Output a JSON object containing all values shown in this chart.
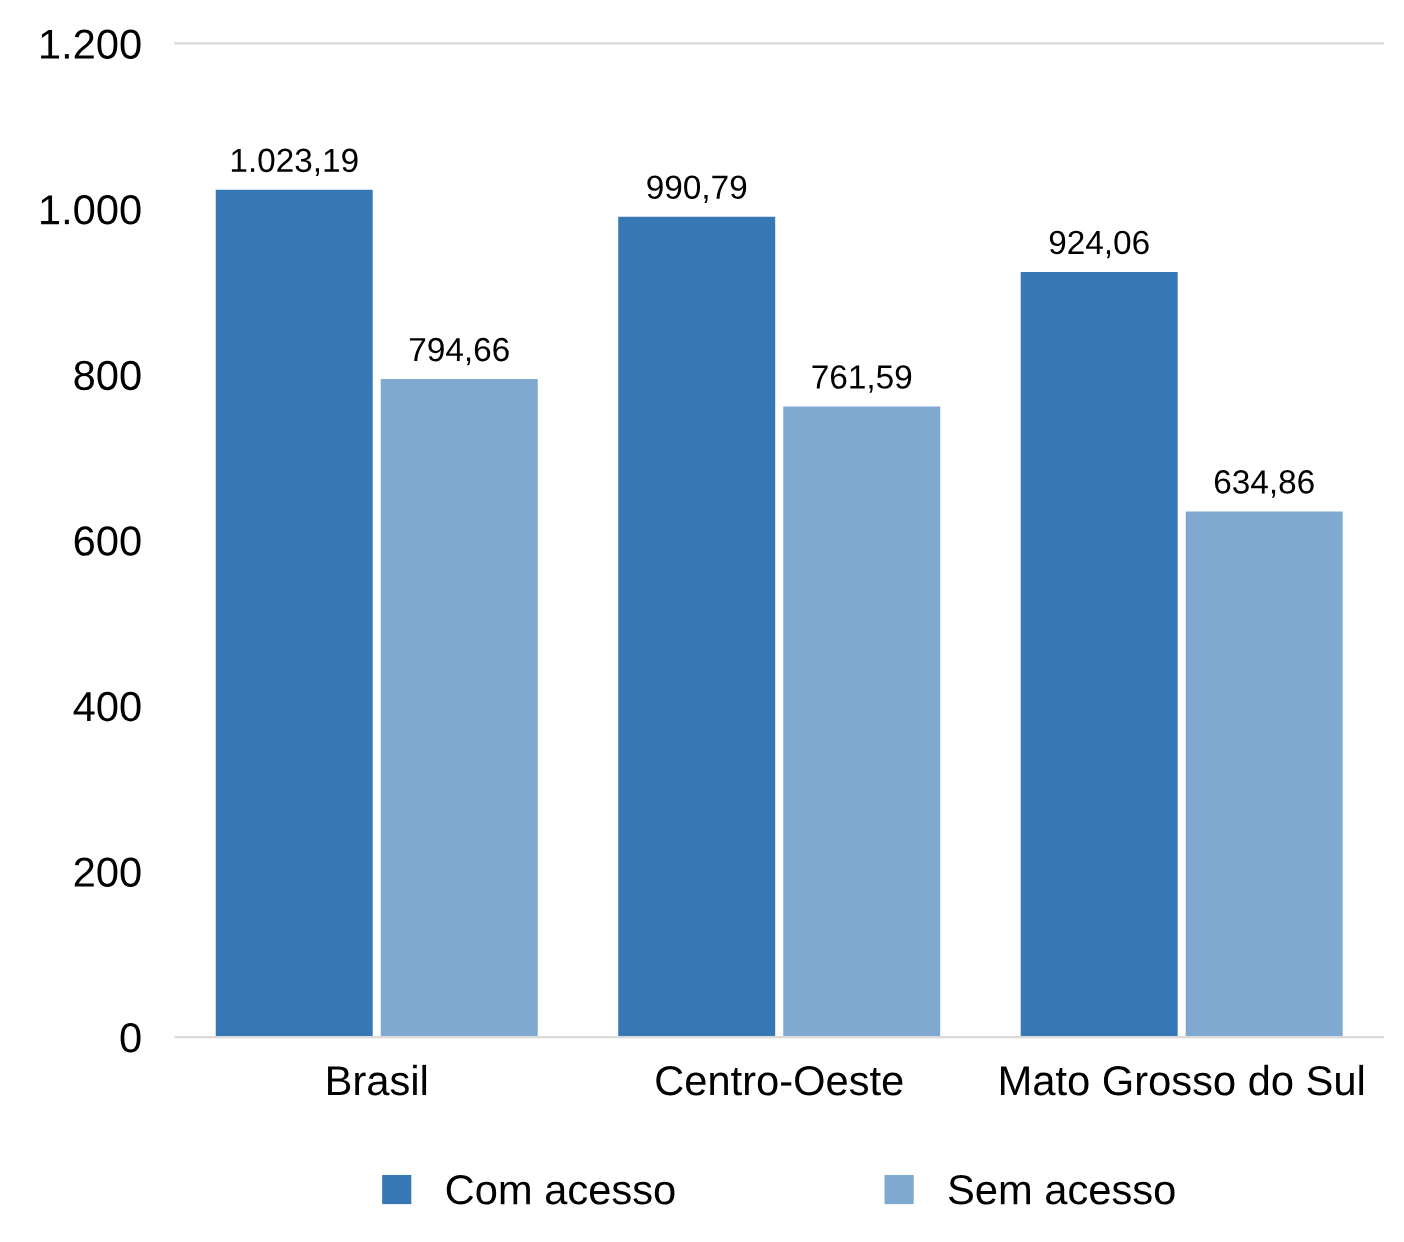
{
  "chart_data": {
    "type": "bar",
    "categories": [
      "Brasil",
      "Centro-Oeste",
      "Mato Grosso do Sul"
    ],
    "series": [
      {
        "name": "Com acesso",
        "color": "#3677b6",
        "values": [
          1023.19,
          990.79,
          924.06
        ],
        "value_labels": [
          "1.023,19",
          "990,79",
          "924,06"
        ]
      },
      {
        "name": "Sem acesso",
        "color": "#80a9d2",
        "values": [
          794.66,
          761.59,
          634.86
        ],
        "value_labels": [
          "794,66",
          "761,59",
          "634,86"
        ]
      }
    ],
    "ylim": [
      0,
      1200
    ],
    "yticks": [
      0,
      200,
      400,
      600,
      800,
      {
        "value": 1000,
        "label": "1.000"
      },
      {
        "value": 1200,
        "label": "1.200"
      }
    ],
    "legend": "bottom",
    "grid": false
  }
}
